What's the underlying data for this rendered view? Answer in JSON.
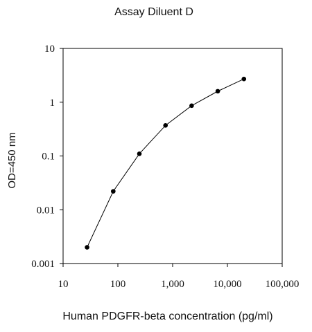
{
  "chart_data": {
    "type": "line",
    "title": "Assay Diluent D",
    "xlabel": "Human PDGFR-beta concentration (pg/ml)",
    "ylabel": "OD=450 nm",
    "x_scale": "log",
    "y_scale": "log",
    "xlim": [
      10,
      100000
    ],
    "ylim": [
      0.001,
      10
    ],
    "x_ticks": [
      10,
      100,
      1000,
      10000,
      100000
    ],
    "x_tick_labels": [
      "10",
      "100",
      "1,000",
      "10,000",
      "100,000"
    ],
    "y_ticks": [
      10,
      1,
      0.1,
      0.01,
      0.001
    ],
    "y_tick_labels": [
      "10",
      "1",
      "0.1",
      "0.01",
      "0.001"
    ],
    "grid": false,
    "legend": "none",
    "series": [
      {
        "x": [
          27.4,
          82.3,
          247,
          741,
          2222,
          6667,
          20000
        ],
        "y": [
          0.002,
          0.022,
          0.11,
          0.37,
          0.86,
          1.6,
          2.7
        ],
        "marker": "circle",
        "color": "#000000"
      }
    ]
  }
}
